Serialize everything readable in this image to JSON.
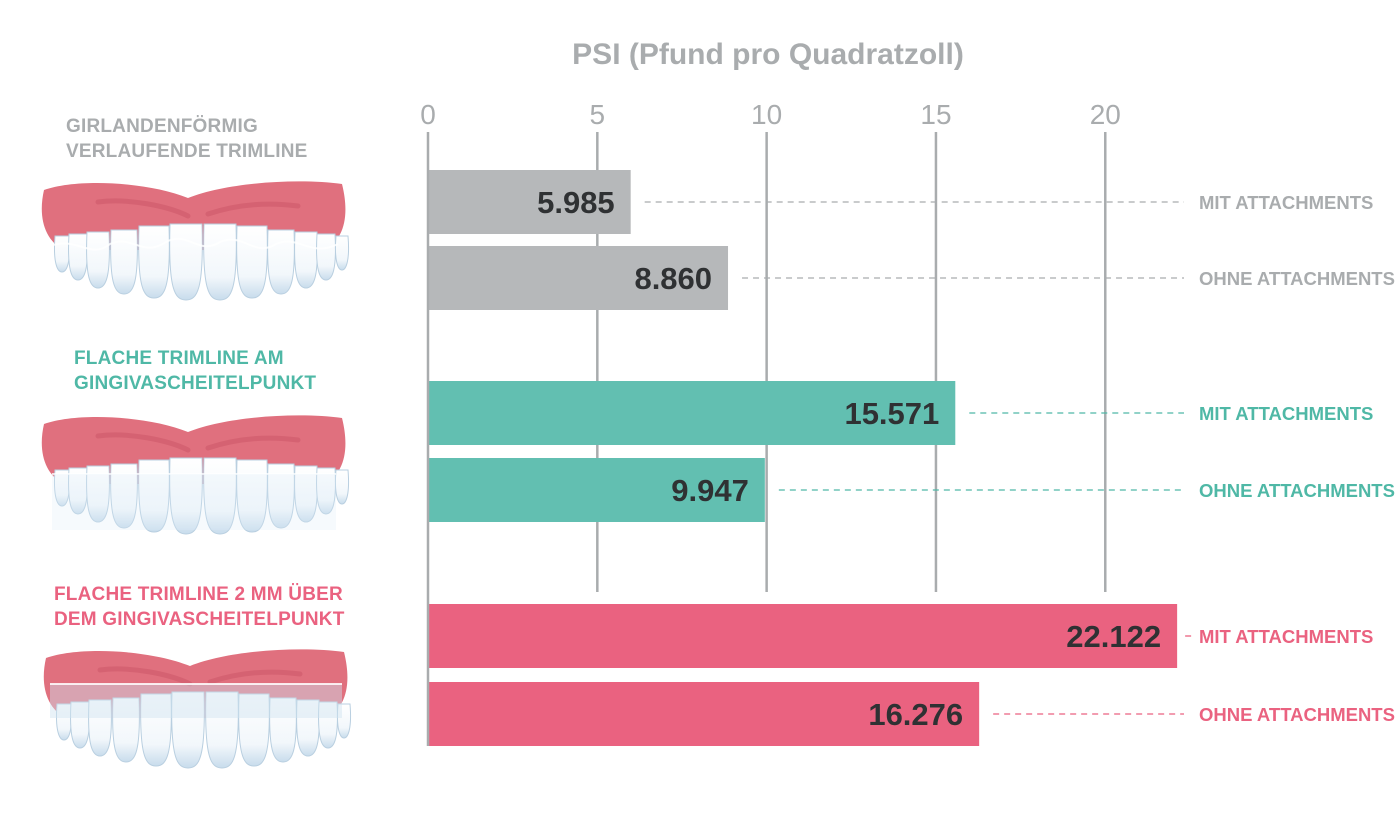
{
  "colors": {
    "grey": "#b6b8ba",
    "teal": "#62bfb1",
    "pink": "#ea6280",
    "axis_text": "#a9acae",
    "value_text": "#2f3133",
    "gum": "#e0707e",
    "gum_dark": "#cc5868",
    "tooth": "#ffffff",
    "tooth_shade": "#c8dcec"
  },
  "groups": [
    {
      "label": "GIRLANDENFÖRMIG\nVERLAUFENDE TRIMLINE",
      "color": "#a9acae",
      "illustration": "teeth-scalloped-trimline"
    },
    {
      "label": "FLACHE TRIMLINE AM\nGINGIVASCHEITELPUNKT",
      "color": "#4fb8a6",
      "illustration": "teeth-flat-trimline"
    },
    {
      "label": "FLACHE TRIMLINE 2 MM ÜBER\nDEM GINGIVASCHEITELPUNKT",
      "color": "#ea6280",
      "illustration": "teeth-flat-trimline-2mm"
    }
  ],
  "chart_data": {
    "type": "bar",
    "orientation": "horizontal",
    "title": "PSI (Pfund pro Quadratzoll)",
    "xlim": [
      0,
      22
    ],
    "ticks": [
      0,
      5,
      10,
      15,
      20
    ],
    "tick_labels": [
      "0",
      "5",
      "10",
      "15",
      "20"
    ],
    "grid": true,
    "categories": [
      "GIRLANDENFÖRMIG VERLAUFENDE TRIMLINE",
      "FLACHE TRIMLINE AM GINGIVASCHEITELPUNKT",
      "FLACHE TRIMLINE 2 MM ÜBER DEM GINGIVASCHEITELPUNKT"
    ],
    "series": [
      {
        "name": "MIT ATTACHMENTS",
        "values": [
          5.985,
          15.571,
          22.122
        ],
        "labels": [
          "5.985",
          "15.571",
          "22.122"
        ]
      },
      {
        "name": "OHNE ATTACHMENTS",
        "values": [
          8.86,
          9.947,
          16.276
        ],
        "labels": [
          "8.860",
          "9.947",
          "16.276"
        ]
      }
    ],
    "bar_colors": [
      "#b6b8ba",
      "#62bfb1",
      "#ea6280"
    ],
    "legend_colors": [
      "#a9acae",
      "#4fb8a6",
      "#ea6280"
    ]
  }
}
